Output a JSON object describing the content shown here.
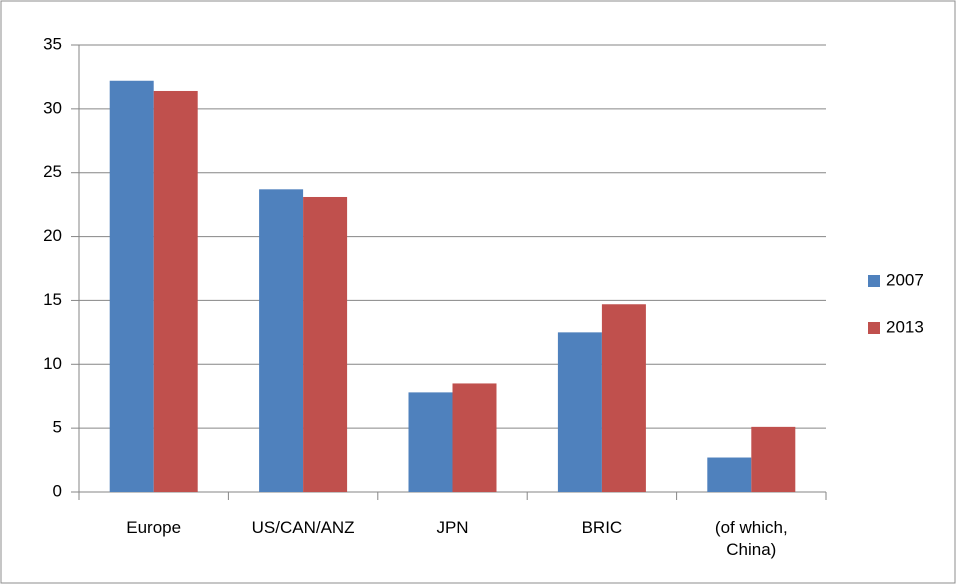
{
  "chart_data": {
    "type": "bar",
    "categories": [
      "Europe",
      "US/CAN/ANZ",
      "JPN",
      "BRIC",
      "(of which, China)"
    ],
    "series": [
      {
        "name": "2007",
        "color": "#4f81bd",
        "values": [
          32.2,
          23.7,
          7.8,
          12.5,
          2.7
        ]
      },
      {
        "name": "2013",
        "color": "#c0504d",
        "values": [
          31.4,
          23.1,
          8.5,
          14.7,
          5.1
        ]
      }
    ],
    "ylim": [
      0,
      35
    ],
    "yticks": [
      0,
      5,
      10,
      15,
      20,
      25,
      30,
      35
    ],
    "grid": true,
    "legend": "right"
  }
}
